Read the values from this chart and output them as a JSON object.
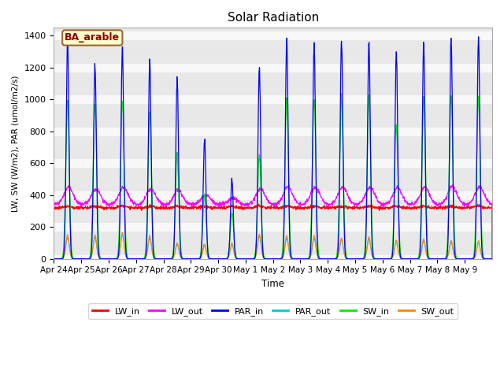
{
  "title": "Solar Radiation",
  "xlabel": "Time",
  "ylabel": "LW, SW (W/m2), PAR (umol/m2/s)",
  "ylim": [
    0,
    1450
  ],
  "annotation": "BA_arable",
  "legend": [
    "LW_in",
    "LW_out",
    "PAR_in",
    "PAR_out",
    "SW_in",
    "SW_out"
  ],
  "colors": {
    "LW_in": "#ff0000",
    "LW_out": "#ff00ff",
    "PAR_in": "#0000ff",
    "PAR_out": "#00cccc",
    "SW_in": "#00ee00",
    "SW_out": "#ff8800"
  },
  "bg_color": "#e8e8e8",
  "grid_color": "#f8f8f8",
  "n_days": 16,
  "points_per_day": 144,
  "lw_in_base": 320,
  "lw_in_range": [
    300,
    345
  ],
  "lw_out_base": 340,
  "lw_out_peak_add": 110,
  "par_in_peaks": [
    1360,
    1220,
    1320,
    1240,
    1130,
    750,
    510,
    1190,
    1380,
    1350,
    1360,
    1350,
    1295,
    1350,
    1390,
    1380
  ],
  "sw_in_peaks": [
    1000,
    980,
    990,
    920,
    650,
    400,
    280,
    650,
    1000,
    1010,
    1020,
    1010,
    830,
    1010,
    1030,
    1020
  ],
  "sw_out_peaks": [
    150,
    150,
    165,
    145,
    100,
    90,
    100,
    155,
    145,
    145,
    130,
    135,
    115,
    125,
    115,
    110
  ],
  "par_out_peaks": [
    150,
    150,
    165,
    145,
    100,
    90,
    100,
    155,
    145,
    145,
    130,
    135,
    115,
    125,
    115,
    110
  ],
  "peak_sigma": 1.2,
  "sw_sigma": 1.5,
  "xtick_labels": [
    "Apr 24",
    "Apr 25",
    "Apr 26",
    "Apr 27",
    "Apr 28",
    "Apr 29",
    "Apr 30",
    "May 1",
    "May 2",
    "May 3",
    "May 4",
    "May 5",
    "May 6",
    "May 7",
    "May 8",
    "May 9"
  ],
  "yticks": [
    0,
    200,
    400,
    600,
    800,
    1000,
    1200,
    1400
  ],
  "figsize": [
    6.4,
    4.8
  ],
  "dpi": 100
}
